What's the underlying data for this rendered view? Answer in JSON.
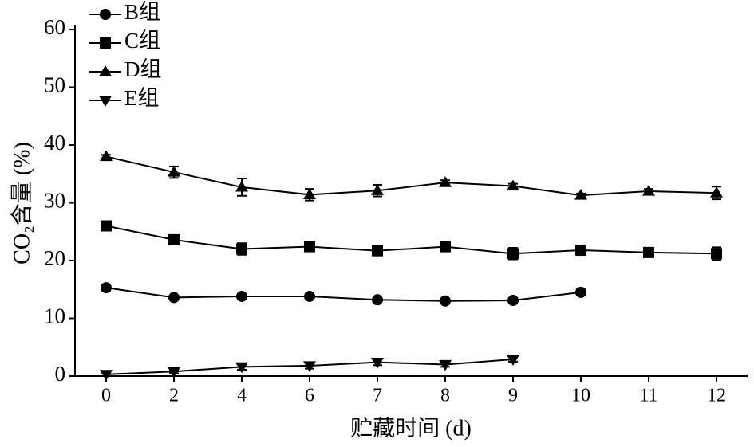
{
  "chart_data": {
    "type": "line",
    "xlabel": "贮藏时间 (d)",
    "ylabel": "CO₂含量 (%)",
    "categories": [
      "0",
      "2",
      "4",
      "6",
      "7",
      "8",
      "9",
      "10",
      "11",
      "12"
    ],
    "ylim": [
      0,
      60
    ],
    "yticks": [
      0,
      10,
      20,
      30,
      40,
      50,
      60
    ],
    "legend": "top-left",
    "series": [
      {
        "name": "B组",
        "color": "#000000",
        "marker": "circle",
        "values": [
          15.3,
          13.6,
          13.8,
          13.8,
          13.2,
          13.0,
          13.1,
          14.5,
          null,
          null
        ],
        "errors": [
          0.5,
          0.4,
          0.4,
          0.4,
          0.4,
          0.3,
          0.4,
          0.5,
          null,
          null
        ]
      },
      {
        "name": "C组",
        "color": "#000000",
        "marker": "square",
        "values": [
          26.0,
          23.6,
          22.0,
          22.4,
          21.7,
          22.4,
          21.2,
          21.8,
          21.4,
          21.2
        ],
        "errors": [
          0.8,
          0.8,
          1.0,
          0.5,
          0.5,
          0.8,
          1.0,
          0.5,
          0.5,
          1.1
        ]
      },
      {
        "name": "D组",
        "color": "#000000",
        "marker": "triangle",
        "values": [
          38.0,
          35.3,
          32.7,
          31.4,
          32.1,
          33.5,
          32.9,
          31.3,
          32.0,
          31.7
        ],
        "errors": [
          0.3,
          1.0,
          1.5,
          1.0,
          1.0,
          0.4,
          0.4,
          0.3,
          0.4,
          1.1
        ]
      },
      {
        "name": "E组",
        "color": "#000000",
        "marker": "triangle-down",
        "values": [
          0.3,
          0.8,
          1.6,
          1.8,
          2.4,
          2.0,
          2.9,
          null,
          null,
          null
        ],
        "errors": [
          0.3,
          0.3,
          0.5,
          0.5,
          0.5,
          0.4,
          0.4,
          null,
          null,
          null
        ]
      }
    ]
  }
}
